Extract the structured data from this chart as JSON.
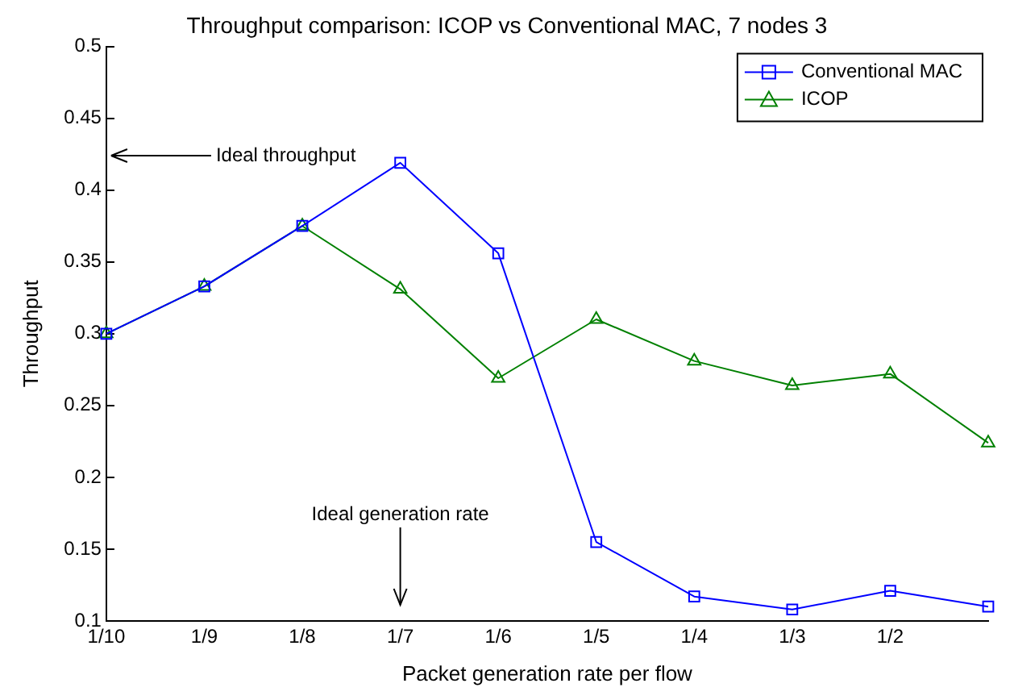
{
  "chart_data": {
    "type": "line",
    "title": "Throughput comparison: ICOP vs Conventional MAC, 7 nodes 3",
    "xlabel": "Packet generation rate per flow",
    "ylabel": "Throughput",
    "categories": [
      "1/10",
      "1/9",
      "1/8",
      "1/7",
      "1/6",
      "1/5",
      "1/4",
      "1/3",
      "1/2",
      null
    ],
    "series": [
      {
        "name": "Conventional MAC",
        "color": "#0000ff",
        "marker": "square",
        "values": [
          0.3,
          0.333,
          0.375,
          0.419,
          0.356,
          0.155,
          0.117,
          0.108,
          0.121,
          0.11
        ]
      },
      {
        "name": "ICOP",
        "color": "#008000",
        "marker": "triangle",
        "values": [
          0.3,
          0.333,
          0.375,
          0.331,
          0.269,
          0.31,
          0.281,
          0.264,
          0.272,
          0.224
        ]
      }
    ],
    "ylim": [
      0.1,
      0.5
    ],
    "yticks": [
      {
        "value": 0.1,
        "label": "0.1"
      },
      {
        "value": 0.15,
        "label": "0.15"
      },
      {
        "value": 0.2,
        "label": "0.2"
      },
      {
        "value": 0.25,
        "label": "0.25"
      },
      {
        "value": 0.3,
        "label": "0.3"
      },
      {
        "value": 0.35,
        "label": "0.35"
      },
      {
        "value": 0.4,
        "label": "0.4"
      },
      {
        "value": 0.45,
        "label": "0.45"
      },
      {
        "value": 0.5,
        "label": "0.5"
      }
    ],
    "grid": false,
    "legend": "top right",
    "line_style": "solid",
    "annotations": [
      "Ideal throughput",
      "Ideal generation rate"
    ]
  }
}
